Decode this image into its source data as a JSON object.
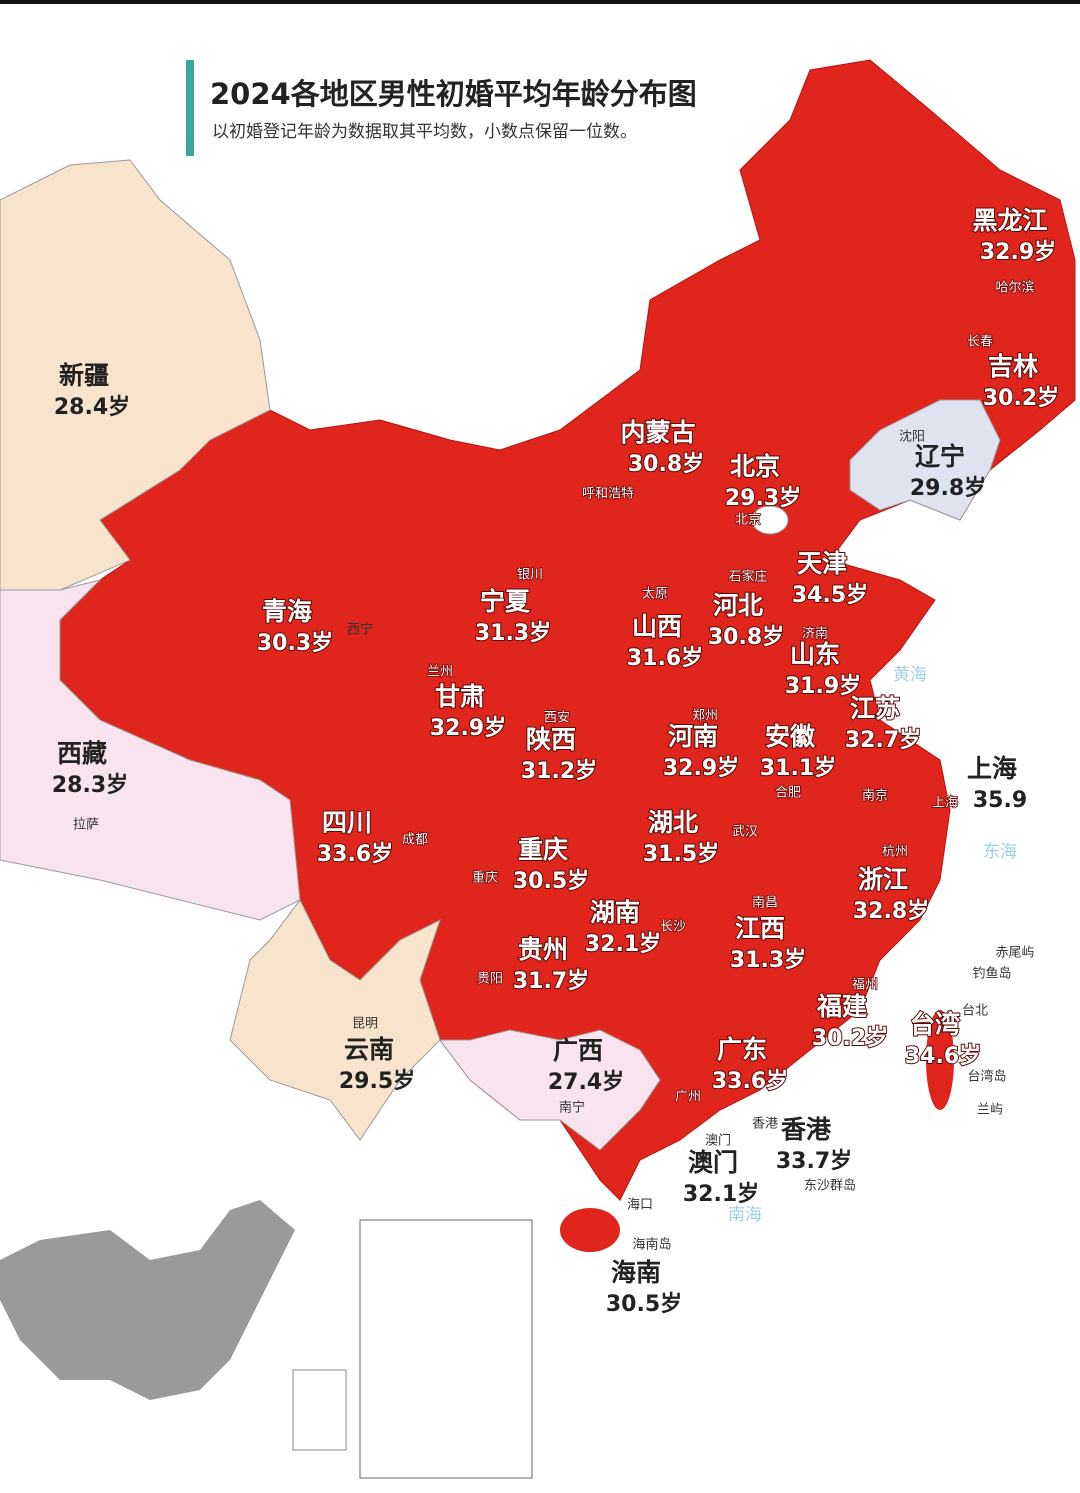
{
  "header": {
    "title": "2024各地区男性初婚平均年龄分布图",
    "subtitle": "以初婚登记年龄为数据取其平均数，小数点保留一位数。"
  },
  "regions": [
    {
      "name": "黑龙江",
      "value": "32.9岁"
    },
    {
      "name": "吉林",
      "value": "30.2岁"
    },
    {
      "name": "辽宁",
      "value": "29.8岁"
    },
    {
      "name": "内蒙古",
      "value": "30.8岁"
    },
    {
      "name": "北京",
      "value": "29.3岁"
    },
    {
      "name": "天津",
      "value": "34.5岁"
    },
    {
      "name": "河北",
      "value": "30.8岁"
    },
    {
      "name": "山西",
      "value": "31.6岁"
    },
    {
      "name": "山东",
      "value": "31.9岁"
    },
    {
      "name": "宁夏",
      "value": "31.3岁"
    },
    {
      "name": "青海",
      "value": "30.3岁"
    },
    {
      "name": "甘肃",
      "value": "32.9岁"
    },
    {
      "name": "陕西",
      "value": "31.2岁"
    },
    {
      "name": "河南",
      "value": "32.9岁"
    },
    {
      "name": "安徽",
      "value": "31.1岁"
    },
    {
      "name": "江苏",
      "value": "32.7岁"
    },
    {
      "name": "上海",
      "value": "35.9"
    },
    {
      "name": "西藏",
      "value": "28.3岁"
    },
    {
      "name": "新疆",
      "value": "28.4岁"
    },
    {
      "name": "四川",
      "value": "33.6岁"
    },
    {
      "name": "重庆",
      "value": "30.5岁"
    },
    {
      "name": "湖北",
      "value": "31.5岁"
    },
    {
      "name": "浙江",
      "value": "32.8岁"
    },
    {
      "name": "湖南",
      "value": "32.1岁"
    },
    {
      "name": "江西",
      "value": "31.3岁"
    },
    {
      "name": "贵州",
      "value": "31.7岁"
    },
    {
      "name": "福建",
      "value": "30.2岁"
    },
    {
      "name": "台湾",
      "value": "34.6岁"
    },
    {
      "name": "云南",
      "value": "29.5岁"
    },
    {
      "name": "广西",
      "value": "27.4岁"
    },
    {
      "name": "广东",
      "value": "33.6岁"
    },
    {
      "name": "香港",
      "value": "33.7岁"
    },
    {
      "name": "澳门",
      "value": "32.1岁"
    },
    {
      "name": "海南",
      "value": "30.5岁"
    }
  ],
  "places": [
    "哈尔滨",
    "长春",
    "沈阳",
    "北京",
    "石家庄",
    "济南",
    "太原",
    "呼和浩特",
    "银川",
    "西宁",
    "兰州",
    "西安",
    "郑州",
    "合肥",
    "南京",
    "上海",
    "杭州",
    "武汉",
    "成都",
    "重庆",
    "长沙",
    "南昌",
    "贵阳",
    "昆明",
    "南宁",
    "福州",
    "台北",
    "广州",
    "香港",
    "澳门",
    "海口",
    "拉萨",
    "东沙群岛",
    "台湾岛",
    "海南岛",
    "赤尾屿",
    "钓鱼岛",
    "兰屿"
  ],
  "seas": [
    "黄海",
    "东海",
    "南海"
  ]
}
